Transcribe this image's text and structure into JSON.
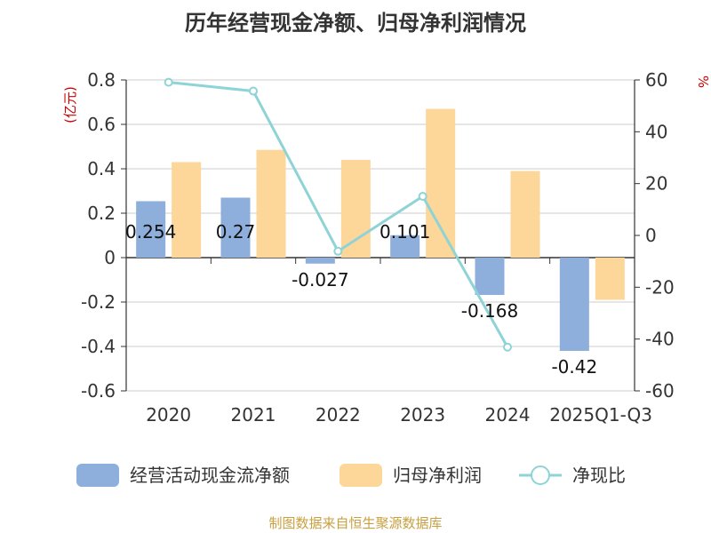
{
  "chart_data": {
    "type": "bar",
    "title": "历年经营现金净额、归母净利润情况",
    "categories": [
      "2020",
      "2021",
      "2022",
      "2023",
      "2024",
      "2025Q1-Q3"
    ],
    "left_axis": {
      "label": "(亿元)",
      "ylim": [
        -0.6,
        0.8
      ],
      "ticks": [
        "0.8",
        "0.6",
        "0.4",
        "0.2",
        "0",
        "-0.2",
        "-0.4",
        "-0.6"
      ]
    },
    "right_axis": {
      "label": "%",
      "ylim": [
        -60,
        60
      ],
      "ticks": [
        "60",
        "40",
        "20",
        "0",
        "-20",
        "-40",
        "-60"
      ]
    },
    "series": [
      {
        "name": "经营活动现金流净额",
        "type": "bar",
        "axis": "left",
        "color": "#8eaedb",
        "values": [
          0.254,
          0.27,
          -0.027,
          0.101,
          -0.168,
          -0.42
        ],
        "labels": [
          "0.254",
          "0.27",
          "-0.027",
          "0.101",
          "-0.168",
          "-0.42"
        ]
      },
      {
        "name": "归母净利润",
        "type": "bar",
        "axis": "left",
        "color": "#fdd699",
        "values": [
          0.43,
          0.485,
          0.44,
          0.67,
          0.39,
          -0.19
        ]
      },
      {
        "name": "净现比",
        "type": "line",
        "axis": "right",
        "color": "#8ed3d6",
        "values": [
          59.1,
          55.7,
          -6.1,
          15.1,
          -43.1,
          null
        ]
      }
    ],
    "grid": true,
    "legend_position": "bottom"
  },
  "source_text": "制图数据来自恒生聚源数据库"
}
